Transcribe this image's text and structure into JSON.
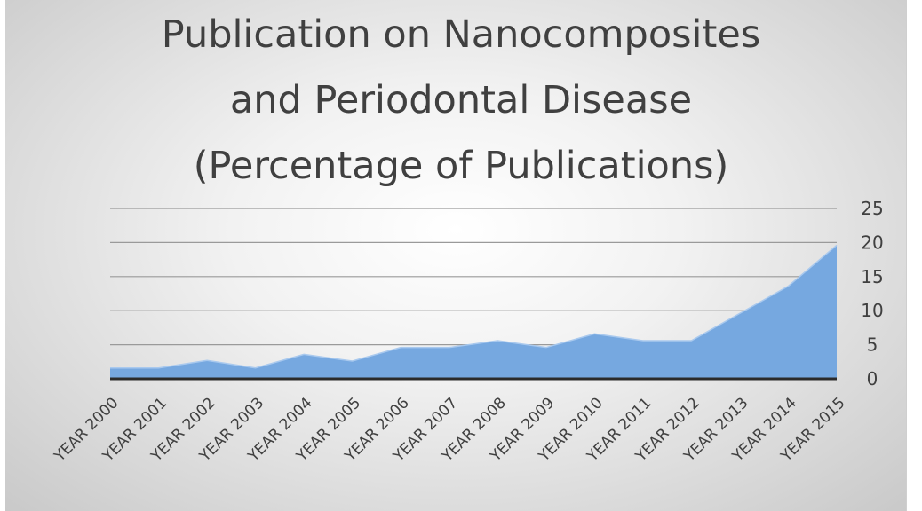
{
  "chart_data": {
    "type": "area",
    "title": "Publication on Nanocomposites\nand Periodontal Disease\n(Percentage of Publications)",
    "xlabel": "",
    "ylabel": "",
    "categories": [
      "YEAR 2000",
      "YEAR 2001",
      "YEAR 2002",
      "YEAR 2003",
      "YEAR 2004",
      "YEAR 2005",
      "YEAR 2006",
      "YEAR 2007",
      "YEAR 2008",
      "YEAR 2009",
      "YEAR 2010",
      "YEAR 2011",
      "YEAR 2012",
      "YEAR 2013",
      "YEAR 2014",
      "YEAR 2015"
    ],
    "values": [
      1.6,
      1.6,
      2.7,
      1.6,
      3.6,
      2.6,
      4.6,
      4.6,
      5.6,
      4.6,
      6.6,
      5.6,
      5.6,
      9.6,
      13.6,
      19.6
    ],
    "ylim": [
      0,
      25
    ],
    "yticks": [
      "25",
      "20",
      "15",
      "10",
      "5",
      "0"
    ],
    "ytick_values": [
      25,
      20,
      15,
      10,
      5,
      0
    ],
    "grid": true,
    "y_axis_side": "right",
    "colors": {
      "fill": "#76a8e0",
      "stroke": "#a9c9ee",
      "grid": "#9a9a9a",
      "axis": "#2b2b2b",
      "text": "#404040"
    }
  }
}
